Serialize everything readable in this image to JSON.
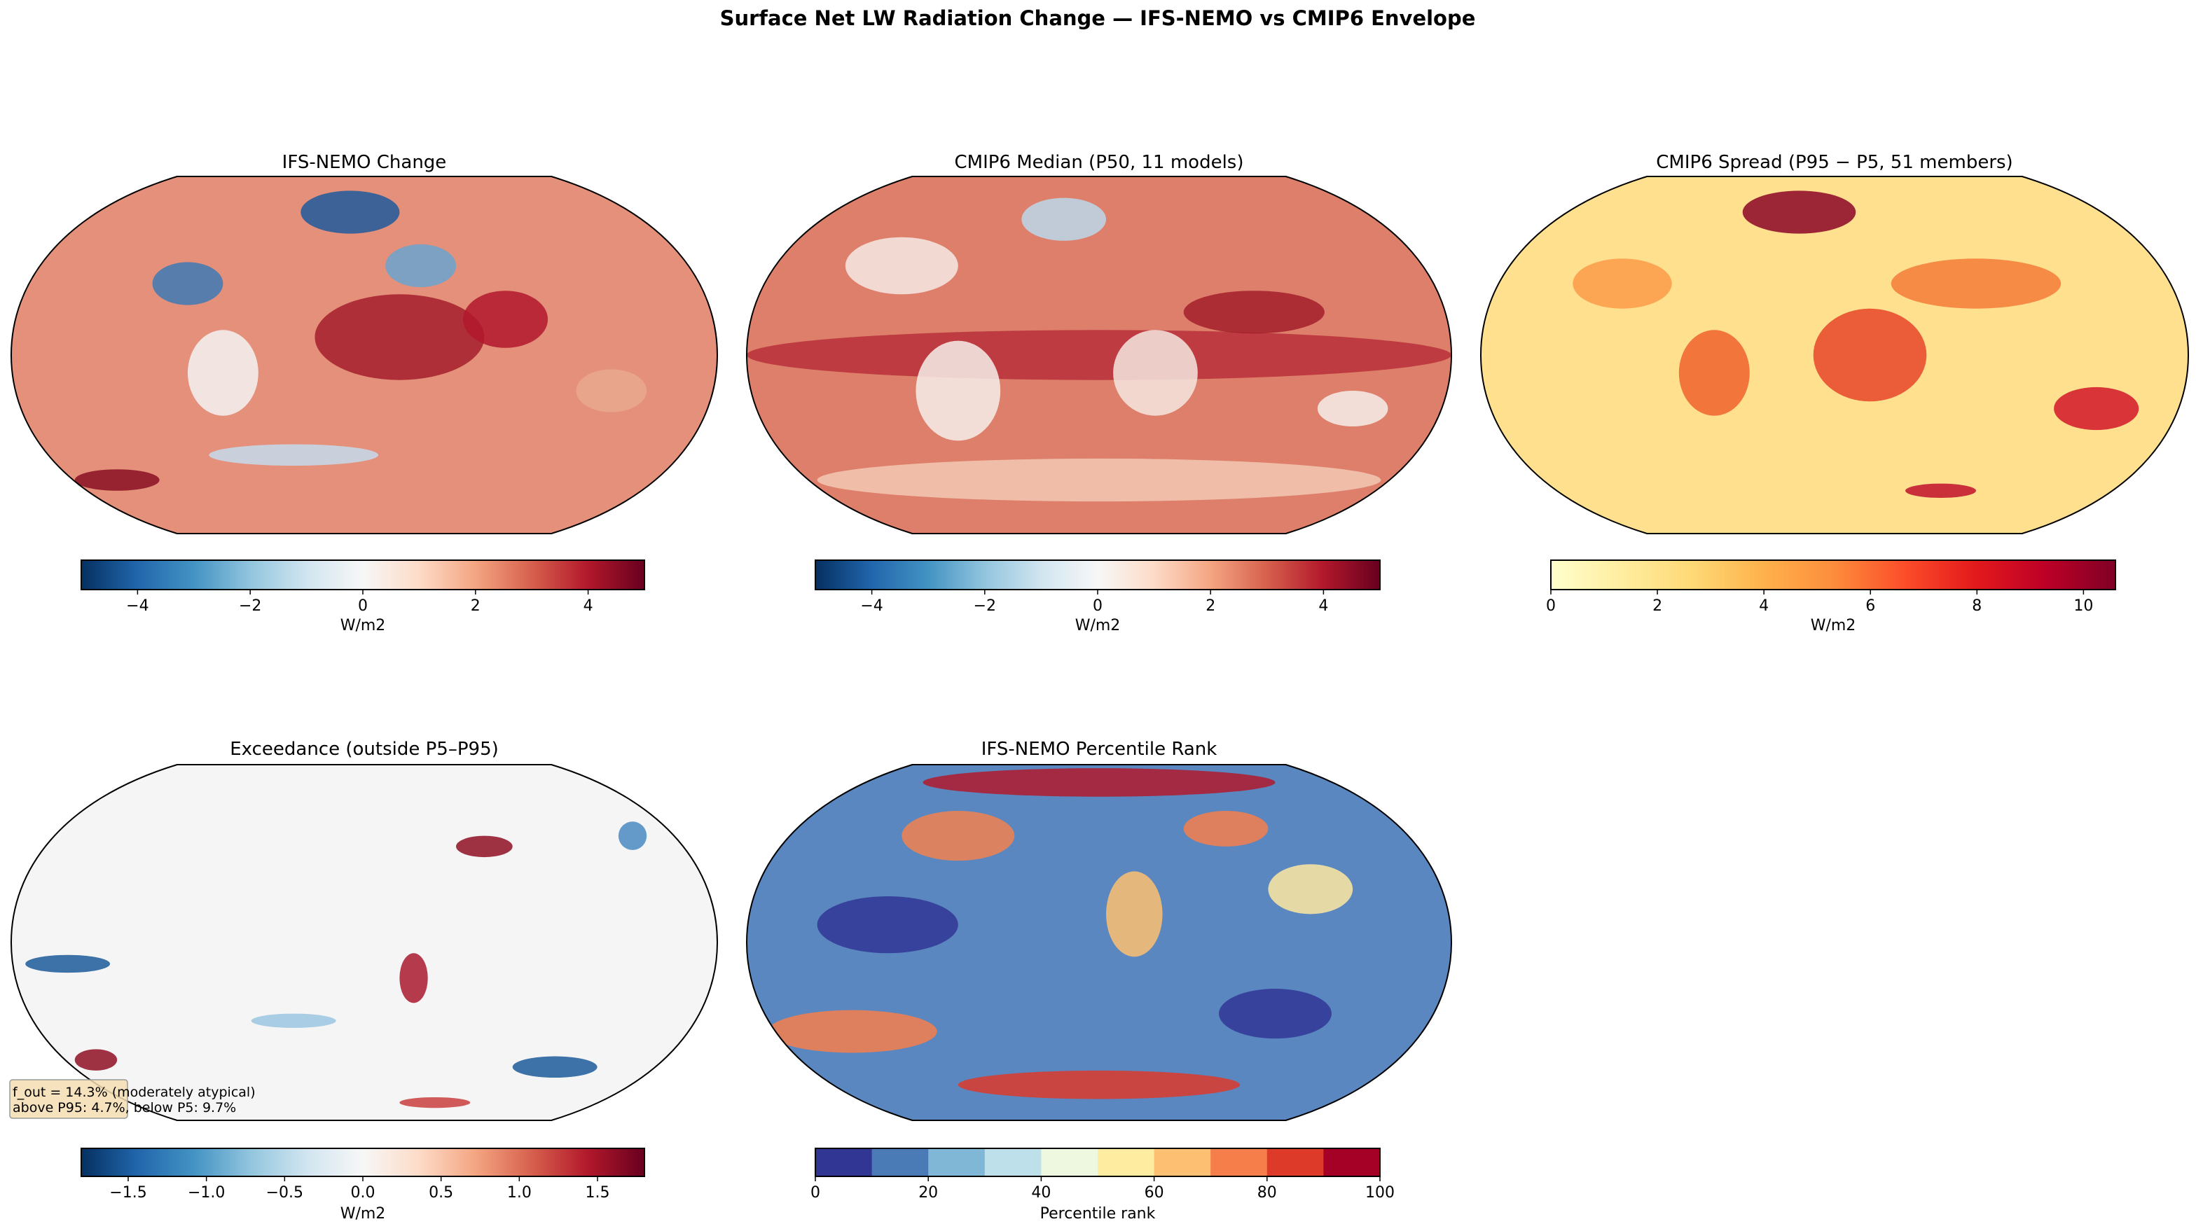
{
  "figure": {
    "suptitle": "Surface Net LW Radiation Change — IFS-NEMO vs CMIP6 Envelope"
  },
  "chart_data": [
    {
      "type": "heatmap",
      "title": "IFS-NEMO Change",
      "projection": "Robinson",
      "colormap": "RdBu_r",
      "colorbar": {
        "label": "W/m2",
        "range": [
          -5,
          5
        ],
        "ticks": [
          -4,
          -2,
          0,
          2,
          4
        ],
        "tick_labels": [
          "−4",
          "−2",
          "0",
          "2",
          "4"
        ]
      }
    },
    {
      "type": "heatmap",
      "title": "CMIP6 Median (P50, 11 models)",
      "projection": "Robinson",
      "colormap": "RdBu_r",
      "colorbar": {
        "label": "W/m2",
        "range": [
          -5,
          5
        ],
        "ticks": [
          -4,
          -2,
          0,
          2,
          4
        ],
        "tick_labels": [
          "−4",
          "−2",
          "0",
          "2",
          "4"
        ]
      }
    },
    {
      "type": "heatmap",
      "title": "CMIP6 Spread (P95 − P5, 51 members)",
      "projection": "Robinson",
      "colormap": "YlOrRd",
      "colorbar": {
        "label": "W/m2",
        "range": [
          0,
          10.6
        ],
        "ticks": [
          0,
          2,
          4,
          6,
          8,
          10
        ],
        "tick_labels": [
          "0",
          "2",
          "4",
          "6",
          "8",
          "10"
        ]
      }
    },
    {
      "type": "heatmap",
      "title": "Exceedance (outside P5–P95)",
      "projection": "Robinson",
      "colormap": "RdBu_r",
      "annotation": [
        "f_out = 14.3% (moderately atypical)",
        "above P95: 4.7%, below P5: 9.7%"
      ],
      "colorbar": {
        "label": "W/m2",
        "range": [
          -1.8,
          1.8
        ],
        "ticks": [
          -1.5,
          -1.0,
          -0.5,
          0.0,
          0.5,
          1.0,
          1.5
        ],
        "tick_labels": [
          "−1.5",
          "−1.0",
          "−0.5",
          "0.0",
          "0.5",
          "1.0",
          "1.5"
        ]
      }
    },
    {
      "type": "heatmap",
      "title": "IFS-NEMO Percentile Rank",
      "projection": "Robinson",
      "colormap": "RdYlBu_r (10 discrete bins)",
      "colorbar": {
        "label": "Percentile rank",
        "range": [
          0,
          100
        ],
        "ticks": [
          0,
          20,
          40,
          60,
          80,
          100
        ],
        "tick_labels": [
          "0",
          "20",
          "40",
          "60",
          "80",
          "100"
        ],
        "bins": [
          "#313695",
          "#4a7bb7",
          "#80b7d6",
          "#bde0ea",
          "#eef7e0",
          "#feeda0",
          "#fdbf71",
          "#f67e4b",
          "#dd3a2a",
          "#a50026"
        ]
      }
    }
  ],
  "colors": {
    "RdBu_r": [
      "#053061",
      "#2166ac",
      "#4393c3",
      "#92c5de",
      "#d1e5f0",
      "#f7f7f7",
      "#fddbc7",
      "#f4a582",
      "#d6604d",
      "#b2182b",
      "#67001f"
    ],
    "YlOrRd": [
      "#ffffcc",
      "#ffeda0",
      "#fed976",
      "#feb24c",
      "#fd8d3c",
      "#fc4e2a",
      "#e31a1c",
      "#bd0026",
      "#800026"
    ],
    "annotation_box": "#f5deb3"
  }
}
